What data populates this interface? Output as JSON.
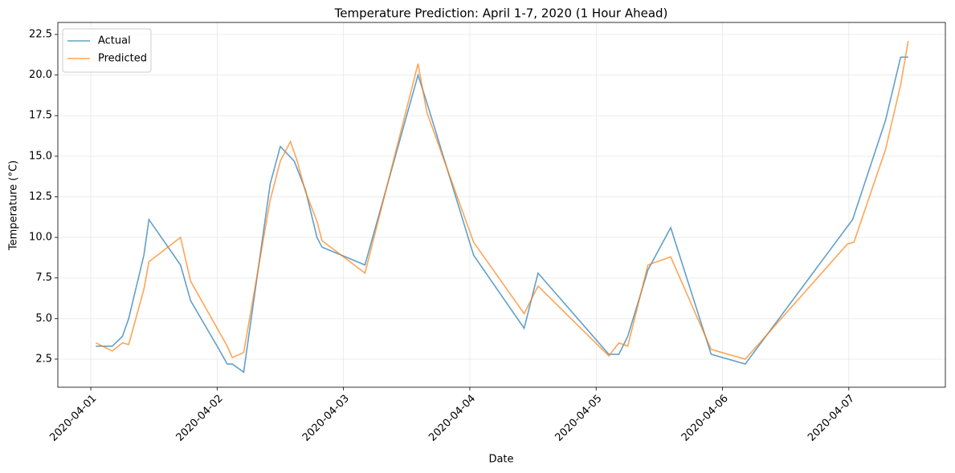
{
  "chart_data": {
    "type": "line",
    "title": "Temperature Prediction: April 1-7, 2020 (1 Hour Ahead)",
    "x_label": "Date",
    "y_label": "Temperature (°C)",
    "xlim": [
      -0.261,
      6.764
    ],
    "xticks": [
      {
        "value": 0,
        "label": "2020-04-01"
      },
      {
        "value": 1,
        "label": "2020-04-02"
      },
      {
        "value": 2,
        "label": "2020-04-03"
      },
      {
        "value": 3,
        "label": "2020-04-04"
      },
      {
        "value": 4,
        "label": "2020-04-05"
      },
      {
        "value": 5,
        "label": "2020-04-06"
      },
      {
        "value": 6,
        "label": "2020-04-07"
      }
    ],
    "ylim": [
      0.77,
      23.24
    ],
    "yticks": [
      2.5,
      {
        "value": 5,
        "label": "5.0"
      },
      7.5,
      {
        "value": 10,
        "label": "10.0"
      },
      12.5,
      {
        "value": 15,
        "label": "15.0"
      },
      17.5,
      {
        "value": 20,
        "label": "20.0"
      },
      22.5
    ],
    "grid": true,
    "legend": "upper-left",
    "series": [
      {
        "name": "Actual",
        "color": "#1f77b4",
        "x": [
          0.04,
          0.17,
          0.25,
          0.3,
          0.42,
          0.46,
          0.71,
          0.79,
          1.0,
          1.08,
          1.12,
          1.21,
          1.42,
          1.5,
          1.61,
          1.7,
          1.79,
          1.83,
          2.17,
          2.59,
          2.66,
          3.03,
          3.43,
          3.54,
          4.1,
          4.18,
          4.25,
          4.41,
          4.59,
          4.91,
          5.18,
          6.03,
          6.29,
          6.41,
          6.47
        ],
        "values": [
          3.3,
          3.3,
          3.9,
          5.0,
          8.9,
          11.1,
          8.3,
          6.1,
          3.3,
          2.2,
          2.2,
          1.7,
          13.3,
          15.6,
          14.7,
          12.9,
          10.0,
          9.4,
          8.3,
          20.0,
          18.3,
          8.9,
          4.4,
          7.8,
          2.8,
          2.8,
          3.9,
          8.0,
          10.6,
          2.8,
          2.2,
          11.1,
          17.2,
          21.1,
          21.1
        ]
      },
      {
        "name": "Predicted",
        "color": "#ff7f0e",
        "x": [
          0.04,
          0.17,
          0.25,
          0.3,
          0.42,
          0.46,
          0.71,
          0.79,
          1.08,
          1.12,
          1.21,
          1.42,
          1.5,
          1.58,
          1.63,
          1.7,
          1.79,
          1.83,
          2.17,
          2.59,
          2.66,
          3.03,
          3.43,
          3.54,
          4.1,
          4.18,
          4.25,
          4.41,
          4.59,
          4.91,
          5.18,
          5.99,
          6.04,
          6.29,
          6.41,
          6.47
        ],
        "values": [
          3.5,
          3.0,
          3.5,
          3.4,
          6.8,
          8.5,
          10.0,
          7.3,
          3.3,
          2.6,
          2.9,
          12.3,
          14.7,
          15.9,
          14.8,
          12.8,
          11.0,
          9.8,
          7.8,
          20.7,
          17.7,
          9.7,
          5.3,
          7.0,
          2.7,
          3.5,
          3.3,
          8.3,
          8.8,
          3.1,
          2.5,
          9.6,
          9.7,
          15.4,
          19.4,
          22.1
        ]
      }
    ]
  }
}
